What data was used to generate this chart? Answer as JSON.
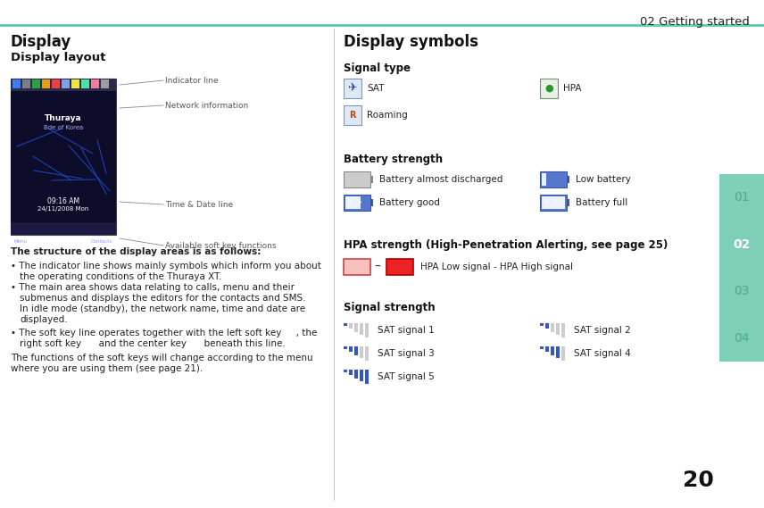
{
  "bg_color": "#ffffff",
  "header_text": "02 Getting started",
  "header_line_color": "#5bc8af",
  "page_number": "20",
  "sidebar_color": "#7dcfb6",
  "sidebar_labels": [
    "01",
    "02",
    "03",
    "04"
  ],
  "sidebar_active": "02",
  "sidebar_active_color": "#ffffff",
  "sidebar_inactive_color": "#4aab90",
  "divider_color": "#cccccc",
  "title_display": "Display",
  "title_display_layout": "Display layout",
  "title_display_symbols": "Display symbols",
  "signal_type_label": "Signal type",
  "battery_strength_label": "Battery strength",
  "hpa_label": "HPA strength (High-Penetration Alerting, see page 25)",
  "signal_strength_label": "Signal strength",
  "indicator_line_label": "Indicator line",
  "network_info_label": "Network information",
  "time_date_label": "Time & Date line",
  "soft_key_label": "Available soft key functions",
  "font_size_body": 7.5,
  "font_size_title": 12,
  "font_size_section": 9.5,
  "font_size_subsection": 8.5,
  "font_size_annot": 6.5
}
